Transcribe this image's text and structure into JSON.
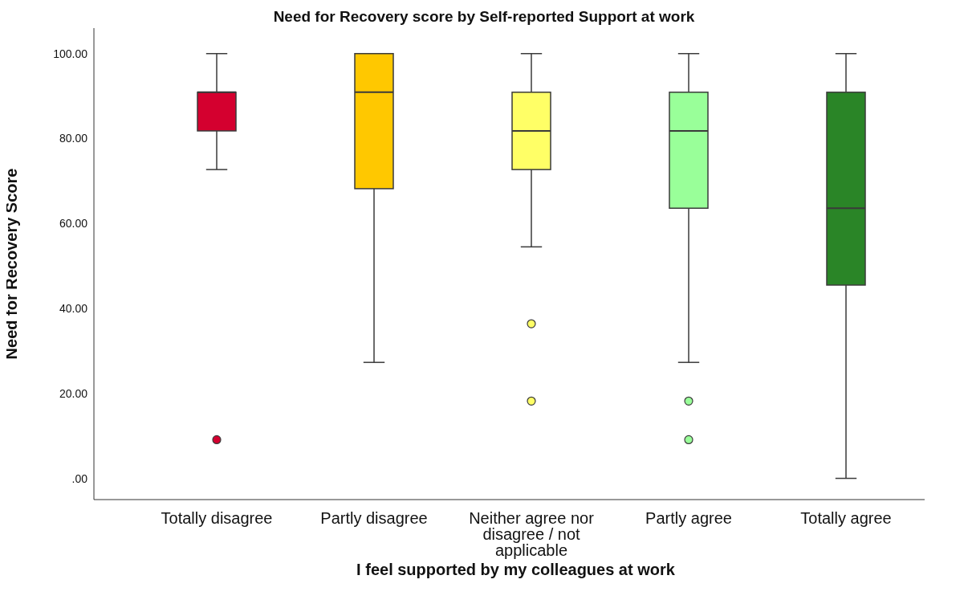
{
  "chart_data": {
    "type": "box",
    "title": "Need for Recovery score by Self-reported Support at work",
    "xlabel": "I feel supported by my colleagues at work",
    "ylabel": "Need for Recovery Score",
    "categories": [
      "Totally disagree",
      "Partly disagree",
      "Neither agree nor disagree / not applicable",
      "Partly agree",
      "Totally agree"
    ],
    "colors": [
      "#d4002f",
      "#ffc800",
      "#ffff66",
      "#99ff99",
      "#2a8527"
    ],
    "boxes": [
      {
        "low": 72.7,
        "q1": 81.8,
        "median": 90.9,
        "q3": 90.9,
        "high": 100,
        "outliers": [
          9.1
        ]
      },
      {
        "low": 27.3,
        "q1": 68.2,
        "median": 90.9,
        "q3": 100,
        "high": 100
      },
      {
        "low": 54.5,
        "q1": 72.7,
        "median": 81.8,
        "q3": 90.9,
        "high": 100,
        "outliers": [
          36.4,
          18.2
        ]
      },
      {
        "low": 27.3,
        "q1": 63.6,
        "median": 81.8,
        "q3": 90.9,
        "high": 100,
        "outliers": [
          18.2,
          9.1
        ]
      },
      {
        "low": 0,
        "q1": 45.5,
        "median": 63.6,
        "q3": 90.9,
        "high": 100
      }
    ],
    "ylim": [
      -5,
      106
    ],
    "yticks": [
      {
        "value": 0,
        "label": ".00"
      },
      {
        "value": 20,
        "label": "20.00"
      },
      {
        "value": 40,
        "label": "40.00"
      },
      {
        "value": 60,
        "label": "60.00"
      },
      {
        "value": 80,
        "label": "80.00"
      },
      {
        "value": 100,
        "label": "100.00"
      }
    ]
  }
}
